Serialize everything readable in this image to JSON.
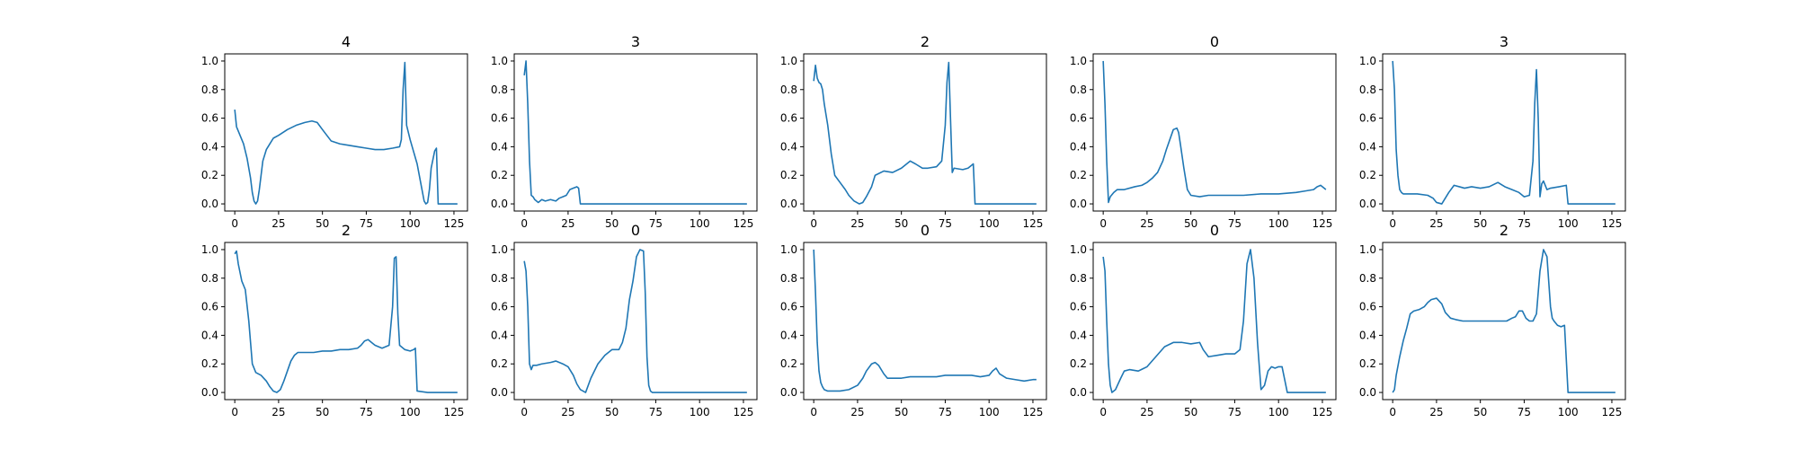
{
  "figure": {
    "line_color": "#1f77b4",
    "axes_color": "#000000",
    "background": "#ffffff"
  },
  "chart_data": [
    {
      "type": "line",
      "title": "4",
      "xlim": [
        0,
        127
      ],
      "ylim": [
        0.0,
        1.0
      ],
      "grid": false,
      "xticks": [
        0,
        25,
        50,
        75,
        100,
        125
      ],
      "xtick_labels": [
        "0",
        "25",
        "50",
        "75",
        "100",
        "125"
      ],
      "yticks": [
        0.0,
        0.2,
        0.4,
        0.6,
        0.8,
        1.0
      ],
      "ytick_labels": [
        "0.0",
        "0.2",
        "0.4",
        "0.6",
        "0.8",
        "1.0"
      ],
      "x": [
        0,
        1,
        3,
        5,
        7,
        9,
        10,
        11,
        12,
        13,
        14,
        16,
        18,
        20,
        22,
        25,
        30,
        35,
        40,
        44,
        47,
        50,
        55,
        60,
        65,
        70,
        75,
        80,
        85,
        90,
        94,
        95,
        96,
        97,
        98,
        100,
        104,
        106,
        108,
        109,
        110,
        111,
        112,
        114,
        115,
        116,
        118,
        122,
        127
      ],
      "y": [
        0.66,
        0.54,
        0.48,
        0.42,
        0.32,
        0.18,
        0.08,
        0.02,
        0.0,
        0.02,
        0.1,
        0.3,
        0.38,
        0.42,
        0.46,
        0.48,
        0.52,
        0.55,
        0.57,
        0.58,
        0.57,
        0.52,
        0.44,
        0.42,
        0.41,
        0.4,
        0.39,
        0.38,
        0.38,
        0.39,
        0.4,
        0.45,
        0.8,
        0.99,
        0.55,
        0.45,
        0.28,
        0.15,
        0.02,
        0.0,
        0.01,
        0.1,
        0.25,
        0.37,
        0.39,
        0.0,
        0.0,
        0.0,
        0.0
      ]
    },
    {
      "type": "line",
      "title": "3",
      "xlim": [
        0,
        127
      ],
      "ylim": [
        0.0,
        1.0
      ],
      "grid": false,
      "xticks": [
        0,
        25,
        50,
        75,
        100,
        125
      ],
      "xtick_labels": [
        "0",
        "25",
        "50",
        "75",
        "100",
        "125"
      ],
      "yticks": [
        0.0,
        0.2,
        0.4,
        0.6,
        0.8,
        1.0
      ],
      "ytick_labels": [
        "0.0",
        "0.2",
        "0.4",
        "0.6",
        "0.8",
        "1.0"
      ],
      "x": [
        0,
        1,
        2,
        3,
        4,
        5,
        6,
        8,
        10,
        12,
        15,
        18,
        20,
        22,
        24,
        26,
        28,
        30,
        31,
        32,
        33,
        40,
        60,
        80,
        100,
        127
      ],
      "y": [
        0.9,
        1.0,
        0.7,
        0.3,
        0.06,
        0.05,
        0.03,
        0.01,
        0.03,
        0.02,
        0.03,
        0.02,
        0.04,
        0.05,
        0.06,
        0.1,
        0.11,
        0.12,
        0.11,
        0.0,
        0.0,
        0.0,
        0.0,
        0.0,
        0.0,
        0.0
      ]
    },
    {
      "type": "line",
      "title": "2",
      "xlim": [
        0,
        127
      ],
      "ylim": [
        0.0,
        1.0
      ],
      "grid": false,
      "xticks": [
        0,
        25,
        50,
        75,
        100,
        125
      ],
      "xtick_labels": [
        "0",
        "25",
        "50",
        "75",
        "100",
        "125"
      ],
      "yticks": [
        0.0,
        0.2,
        0.4,
        0.6,
        0.8,
        1.0
      ],
      "ytick_labels": [
        "0.0",
        "0.2",
        "0.4",
        "0.6",
        "0.8",
        "1.0"
      ],
      "x": [
        0,
        1,
        2,
        3,
        4,
        5,
        6,
        8,
        10,
        12,
        15,
        18,
        20,
        23,
        26,
        28,
        30,
        33,
        35,
        40,
        45,
        50,
        55,
        58,
        62,
        65,
        70,
        73,
        75,
        76,
        77,
        78,
        79,
        80,
        85,
        88,
        90,
        91,
        92,
        95,
        100,
        110,
        127
      ],
      "y": [
        0.86,
        0.97,
        0.88,
        0.85,
        0.84,
        0.8,
        0.7,
        0.55,
        0.35,
        0.2,
        0.15,
        0.1,
        0.06,
        0.02,
        0.0,
        0.01,
        0.05,
        0.12,
        0.2,
        0.23,
        0.22,
        0.25,
        0.3,
        0.28,
        0.25,
        0.25,
        0.26,
        0.3,
        0.55,
        0.85,
        0.99,
        0.6,
        0.22,
        0.25,
        0.24,
        0.25,
        0.27,
        0.28,
        0.0,
        0.0,
        0.0,
        0.0,
        0.0
      ]
    },
    {
      "type": "line",
      "title": "0",
      "xlim": [
        0,
        127
      ],
      "ylim": [
        0.0,
        1.0
      ],
      "grid": false,
      "xticks": [
        0,
        25,
        50,
        75,
        100,
        125
      ],
      "xtick_labels": [
        "0",
        "25",
        "50",
        "75",
        "100",
        "125"
      ],
      "yticks": [
        0.0,
        0.2,
        0.4,
        0.6,
        0.8,
        1.0
      ],
      "ytick_labels": [
        "0.0",
        "0.2",
        "0.4",
        "0.6",
        "0.8",
        "1.0"
      ],
      "x": [
        0,
        1,
        2,
        3,
        4,
        6,
        8,
        12,
        18,
        22,
        25,
        28,
        31,
        34,
        36,
        38,
        40,
        42,
        43,
        44,
        46,
        48,
        50,
        55,
        60,
        70,
        80,
        90,
        100,
        110,
        115,
        120,
        122,
        124,
        126,
        127
      ],
      "y": [
        1.0,
        0.7,
        0.3,
        0.01,
        0.05,
        0.08,
        0.1,
        0.1,
        0.12,
        0.13,
        0.15,
        0.18,
        0.22,
        0.3,
        0.38,
        0.45,
        0.52,
        0.53,
        0.5,
        0.42,
        0.25,
        0.1,
        0.06,
        0.05,
        0.06,
        0.06,
        0.06,
        0.07,
        0.07,
        0.08,
        0.09,
        0.1,
        0.12,
        0.13,
        0.11,
        0.1
      ]
    },
    {
      "type": "line",
      "title": "3",
      "xlim": [
        0,
        127
      ],
      "ylim": [
        0.0,
        1.0
      ],
      "grid": false,
      "xticks": [
        0,
        25,
        50,
        75,
        100,
        125
      ],
      "xtick_labels": [
        "0",
        "25",
        "50",
        "75",
        "100",
        "125"
      ],
      "yticks": [
        0.0,
        0.2,
        0.4,
        0.6,
        0.8,
        1.0
      ],
      "ytick_labels": [
        "0.0",
        "0.2",
        "0.4",
        "0.6",
        "0.8",
        "1.0"
      ],
      "x": [
        0,
        1,
        2,
        3,
        4,
        5,
        6,
        8,
        10,
        14,
        20,
        23,
        25,
        28,
        30,
        32,
        35,
        38,
        41,
        45,
        50,
        55,
        60,
        64,
        68,
        72,
        75,
        78,
        80,
        81,
        82,
        83,
        84,
        85,
        86,
        88,
        90,
        95,
        99,
        100,
        110,
        127
      ],
      "y": [
        1.0,
        0.8,
        0.38,
        0.2,
        0.1,
        0.08,
        0.07,
        0.07,
        0.07,
        0.07,
        0.06,
        0.04,
        0.01,
        0.0,
        0.04,
        0.08,
        0.13,
        0.12,
        0.11,
        0.12,
        0.11,
        0.12,
        0.15,
        0.12,
        0.1,
        0.08,
        0.05,
        0.06,
        0.3,
        0.7,
        0.94,
        0.6,
        0.05,
        0.14,
        0.16,
        0.1,
        0.11,
        0.12,
        0.13,
        0.0,
        0.0,
        0.0
      ]
    },
    {
      "type": "line",
      "title": "2",
      "xlim": [
        0,
        127
      ],
      "ylim": [
        0.0,
        1.0
      ],
      "grid": false,
      "xticks": [
        0,
        25,
        50,
        75,
        100,
        125
      ],
      "xtick_labels": [
        "0",
        "25",
        "50",
        "75",
        "100",
        "125"
      ],
      "yticks": [
        0.0,
        0.2,
        0.4,
        0.6,
        0.8,
        1.0
      ],
      "ytick_labels": [
        "0.0",
        "0.2",
        "0.4",
        "0.6",
        "0.8",
        "1.0"
      ],
      "x": [
        0,
        1,
        2,
        4,
        6,
        8,
        10,
        12,
        15,
        18,
        20,
        22,
        24,
        26,
        28,
        30,
        32,
        34,
        36,
        40,
        45,
        50,
        55,
        60,
        65,
        70,
        72,
        74,
        76,
        78,
        80,
        84,
        88,
        90,
        91,
        92,
        93,
        94,
        95,
        97,
        100,
        102,
        103,
        104,
        110,
        127
      ],
      "y": [
        0.97,
        0.99,
        0.9,
        0.78,
        0.72,
        0.5,
        0.2,
        0.14,
        0.12,
        0.08,
        0.04,
        0.01,
        0.0,
        0.02,
        0.08,
        0.15,
        0.22,
        0.26,
        0.28,
        0.28,
        0.28,
        0.29,
        0.29,
        0.3,
        0.3,
        0.31,
        0.33,
        0.36,
        0.37,
        0.35,
        0.33,
        0.31,
        0.33,
        0.6,
        0.94,
        0.95,
        0.55,
        0.33,
        0.32,
        0.3,
        0.29,
        0.3,
        0.31,
        0.01,
        0.0,
        0.0
      ]
    },
    {
      "type": "line",
      "title": "0",
      "xlim": [
        0,
        127
      ],
      "ylim": [
        0.0,
        1.0
      ],
      "grid": false,
      "xticks": [
        0,
        25,
        50,
        75,
        100,
        125
      ],
      "xtick_labels": [
        "0",
        "25",
        "50",
        "75",
        "100",
        "125"
      ],
      "yticks": [
        0.0,
        0.2,
        0.4,
        0.6,
        0.8,
        1.0
      ],
      "ytick_labels": [
        "0.0",
        "0.2",
        "0.4",
        "0.6",
        "0.8",
        "1.0"
      ],
      "x": [
        0,
        1,
        2,
        3,
        4,
        5,
        7,
        10,
        15,
        18,
        20,
        22,
        25,
        28,
        30,
        32,
        35,
        38,
        42,
        46,
        50,
        54,
        56,
        58,
        60,
        62,
        64,
        66,
        68,
        69,
        70,
        71,
        72,
        73,
        75,
        80,
        100,
        127
      ],
      "y": [
        0.92,
        0.85,
        0.6,
        0.2,
        0.16,
        0.19,
        0.19,
        0.2,
        0.21,
        0.22,
        0.21,
        0.2,
        0.18,
        0.12,
        0.06,
        0.02,
        0.0,
        0.1,
        0.2,
        0.26,
        0.3,
        0.3,
        0.35,
        0.45,
        0.65,
        0.78,
        0.95,
        1.0,
        0.99,
        0.7,
        0.25,
        0.05,
        0.01,
        0.0,
        0.0,
        0.0,
        0.0,
        0.0
      ]
    },
    {
      "type": "line",
      "title": "0",
      "xlim": [
        0,
        127
      ],
      "ylim": [
        0.0,
        1.0
      ],
      "grid": false,
      "xticks": [
        0,
        25,
        50,
        75,
        100,
        125
      ],
      "xtick_labels": [
        "0",
        "25",
        "50",
        "75",
        "100",
        "125"
      ],
      "yticks": [
        0.0,
        0.2,
        0.4,
        0.6,
        0.8,
        1.0
      ],
      "ytick_labels": [
        "0.0",
        "0.2",
        "0.4",
        "0.6",
        "0.8",
        "1.0"
      ],
      "x": [
        0,
        1,
        2,
        3,
        4,
        5,
        6,
        8,
        10,
        15,
        20,
        25,
        28,
        30,
        33,
        35,
        37,
        40,
        42,
        45,
        50,
        55,
        60,
        65,
        70,
        75,
        80,
        85,
        90,
        95,
        100,
        102,
        104,
        106,
        110,
        115,
        120,
        125,
        127
      ],
      "y": [
        1.0,
        0.7,
        0.35,
        0.15,
        0.07,
        0.04,
        0.02,
        0.01,
        0.01,
        0.01,
        0.02,
        0.05,
        0.1,
        0.15,
        0.2,
        0.21,
        0.19,
        0.13,
        0.1,
        0.1,
        0.1,
        0.11,
        0.11,
        0.11,
        0.11,
        0.12,
        0.12,
        0.12,
        0.12,
        0.11,
        0.12,
        0.15,
        0.17,
        0.13,
        0.1,
        0.09,
        0.08,
        0.09,
        0.09
      ]
    },
    {
      "type": "line",
      "title": "0",
      "xlim": [
        0,
        127
      ],
      "ylim": [
        0.0,
        1.0
      ],
      "grid": false,
      "xticks": [
        0,
        25,
        50,
        75,
        100,
        125
      ],
      "xtick_labels": [
        "0",
        "25",
        "50",
        "75",
        "100",
        "125"
      ],
      "yticks": [
        0.0,
        0.2,
        0.4,
        0.6,
        0.8,
        1.0
      ],
      "ytick_labels": [
        "0.0",
        "0.2",
        "0.4",
        "0.6",
        "0.8",
        "1.0"
      ],
      "x": [
        0,
        1,
        2,
        3,
        4,
        5,
        7,
        10,
        12,
        15,
        20,
        25,
        30,
        35,
        40,
        45,
        50,
        55,
        57,
        60,
        65,
        70,
        75,
        78,
        80,
        82,
        84,
        86,
        88,
        90,
        92,
        94,
        96,
        98,
        100,
        102,
        105,
        110,
        127
      ],
      "y": [
        0.95,
        0.85,
        0.5,
        0.2,
        0.05,
        0.0,
        0.02,
        0.1,
        0.15,
        0.16,
        0.15,
        0.18,
        0.25,
        0.32,
        0.35,
        0.35,
        0.34,
        0.35,
        0.3,
        0.25,
        0.26,
        0.27,
        0.27,
        0.3,
        0.5,
        0.9,
        1.0,
        0.8,
        0.35,
        0.02,
        0.05,
        0.15,
        0.18,
        0.17,
        0.18,
        0.18,
        0.0,
        0.0,
        0.0
      ]
    },
    {
      "type": "line",
      "title": "2",
      "xlim": [
        0,
        127
      ],
      "ylim": [
        0.0,
        1.0
      ],
      "grid": false,
      "xticks": [
        0,
        25,
        50,
        75,
        100,
        125
      ],
      "xtick_labels": [
        "0",
        "25",
        "50",
        "75",
        "100",
        "125"
      ],
      "yticks": [
        0.0,
        0.2,
        0.4,
        0.6,
        0.8,
        1.0
      ],
      "ytick_labels": [
        "0.0",
        "0.2",
        "0.4",
        "0.6",
        "0.8",
        "1.0"
      ],
      "x": [
        0,
        1,
        2,
        4,
        6,
        8,
        10,
        12,
        15,
        18,
        20,
        22,
        25,
        28,
        30,
        33,
        36,
        40,
        45,
        50,
        55,
        60,
        65,
        68,
        70,
        72,
        74,
        76,
        78,
        80,
        82,
        84,
        86,
        88,
        90,
        91,
        92,
        94,
        96,
        98,
        100,
        105,
        110,
        127
      ],
      "y": [
        0.0,
        0.02,
        0.12,
        0.25,
        0.36,
        0.45,
        0.55,
        0.57,
        0.58,
        0.6,
        0.63,
        0.65,
        0.66,
        0.62,
        0.56,
        0.52,
        0.51,
        0.5,
        0.5,
        0.5,
        0.5,
        0.5,
        0.5,
        0.52,
        0.53,
        0.57,
        0.57,
        0.52,
        0.5,
        0.5,
        0.55,
        0.85,
        1.0,
        0.95,
        0.6,
        0.52,
        0.5,
        0.47,
        0.46,
        0.47,
        0.0,
        0.0,
        0.0,
        0.0
      ]
    }
  ]
}
